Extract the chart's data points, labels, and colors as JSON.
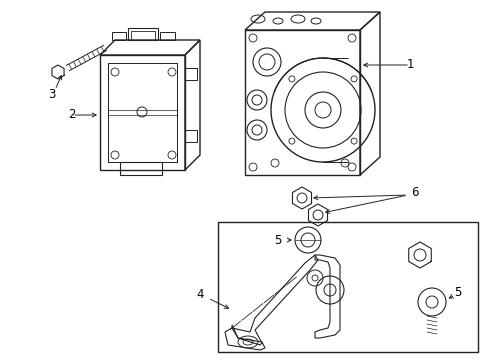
{
  "bg_color": "#ffffff",
  "line_color": "#222222",
  "label_color": "#000000",
  "fig_width": 4.89,
  "fig_height": 3.6,
  "dpi": 100,
  "font_size": 8.5
}
